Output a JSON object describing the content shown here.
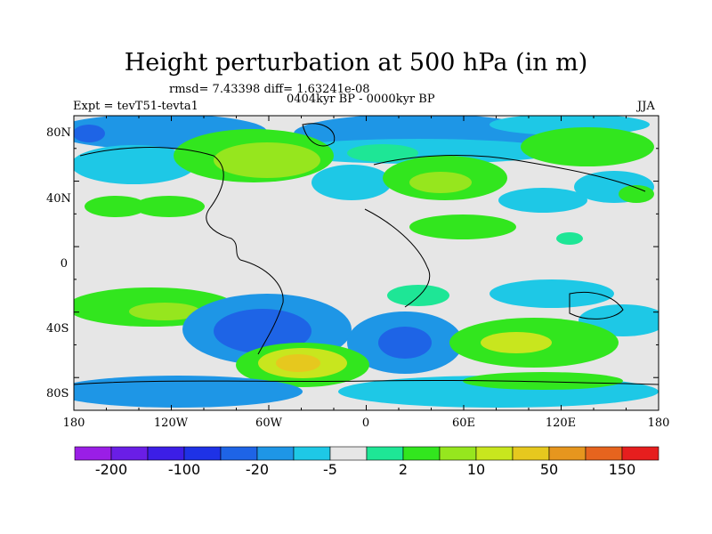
{
  "title": "Height perturbation at 500 hPa (in m)",
  "stats": "rmsd= 7.43398 diff= 1.63241e-08",
  "experiment": "Expt = tevT51-tevta1",
  "period": "0404kyr BP - 0000kyr BP",
  "season": "JJA",
  "y_ticks": [
    "80N",
    "40N",
    "0",
    "40S",
    "80S"
  ],
  "x_ticks": [
    "180",
    "120W",
    "60W",
    "0",
    "60E",
    "120E",
    "180"
  ],
  "colorbar": {
    "colors": [
      "#9a1ee6",
      "#6a1ee6",
      "#3c1ee6",
      "#1e32e6",
      "#1e64e6",
      "#1e96e6",
      "#1ec8e6",
      "#e6e6e6",
      "#1ee696",
      "#32e61e",
      "#96e61e",
      "#c8e61e",
      "#e6c81e",
      "#e6961e",
      "#e6641e",
      "#e61e1e"
    ],
    "labels": [
      "-200",
      "-100",
      "-20",
      "-5",
      "2",
      "10",
      "50",
      "150"
    ]
  },
  "field_colors": {
    "neutral": "#e6e6e6",
    "lightblue": "#1ec8e6",
    "blue": "#1e96e6",
    "midblue": "#1e64e6",
    "darkblue": "#1e32e6",
    "teal": "#1ee696",
    "green": "#32e61e",
    "lightgreen": "#96e61e",
    "yellowgreen": "#c8e61e",
    "yellow": "#e6c81e",
    "orange": "#e6961e"
  }
}
